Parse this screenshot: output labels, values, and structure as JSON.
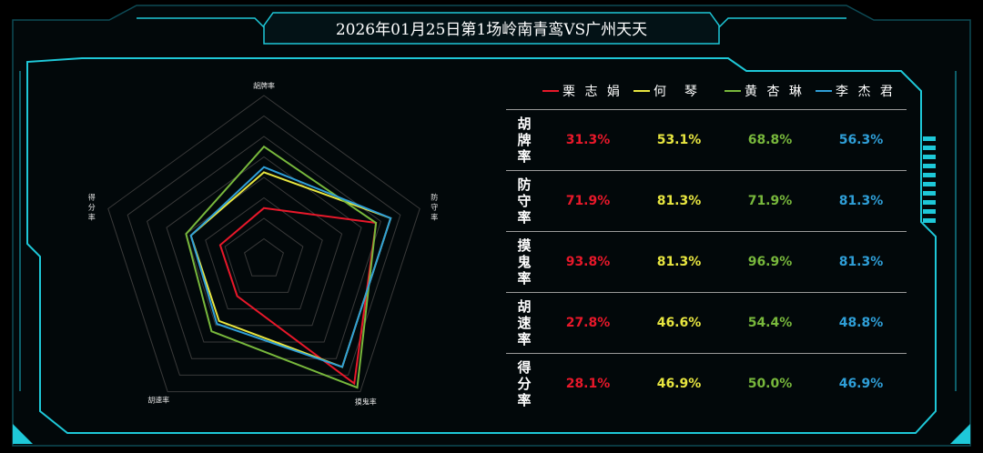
{
  "title": "2026年01月25日第1场岭南青鸾VS广州天天",
  "colors": {
    "background": "#000000",
    "frame": "#1ec8d8",
    "grid": "#3a3a3a"
  },
  "chart_data": {
    "type": "radar",
    "axes": [
      "胡牌率",
      "防守率",
      "摸鬼率",
      "胡速率",
      "得分率"
    ],
    "rlim": [
      0,
      100
    ],
    "series": [
      {
        "name": "栗志娟",
        "color": "#e8182a",
        "values": [
          31.3,
          71.9,
          93.8,
          27.8,
          28.1
        ]
      },
      {
        "name": "何　琴",
        "color": "#e8e640",
        "values": [
          53.1,
          81.3,
          81.3,
          46.6,
          46.9
        ]
      },
      {
        "name": "黄杏琳",
        "color": "#78b83c",
        "values": [
          68.8,
          71.9,
          96.9,
          54.4,
          50.0
        ]
      },
      {
        "name": "李杰君",
        "color": "#2f9fd8",
        "values": [
          56.3,
          81.3,
          81.3,
          48.8,
          46.9
        ]
      }
    ]
  },
  "table": {
    "headers": [
      "栗 志 娟",
      "何　琴",
      "黄 杏 琳",
      "李 杰 君"
    ],
    "rows": [
      {
        "label": [
          "胡",
          "牌",
          "率"
        ],
        "values": [
          "31.3%",
          "53.1%",
          "68.8%",
          "56.3%"
        ]
      },
      {
        "label": [
          "防",
          "守",
          "率"
        ],
        "values": [
          "71.9%",
          "81.3%",
          "71.9%",
          "81.3%"
        ]
      },
      {
        "label": [
          "摸",
          "鬼",
          "率"
        ],
        "values": [
          "93.8%",
          "81.3%",
          "96.9%",
          "81.3%"
        ]
      },
      {
        "label": [
          "胡",
          "速",
          "率"
        ],
        "values": [
          "27.8%",
          "46.6%",
          "54.4%",
          "48.8%"
        ]
      },
      {
        "label": [
          "得",
          "分",
          "率"
        ],
        "values": [
          "28.1%",
          "46.9%",
          "50.0%",
          "46.9%"
        ]
      }
    ]
  }
}
